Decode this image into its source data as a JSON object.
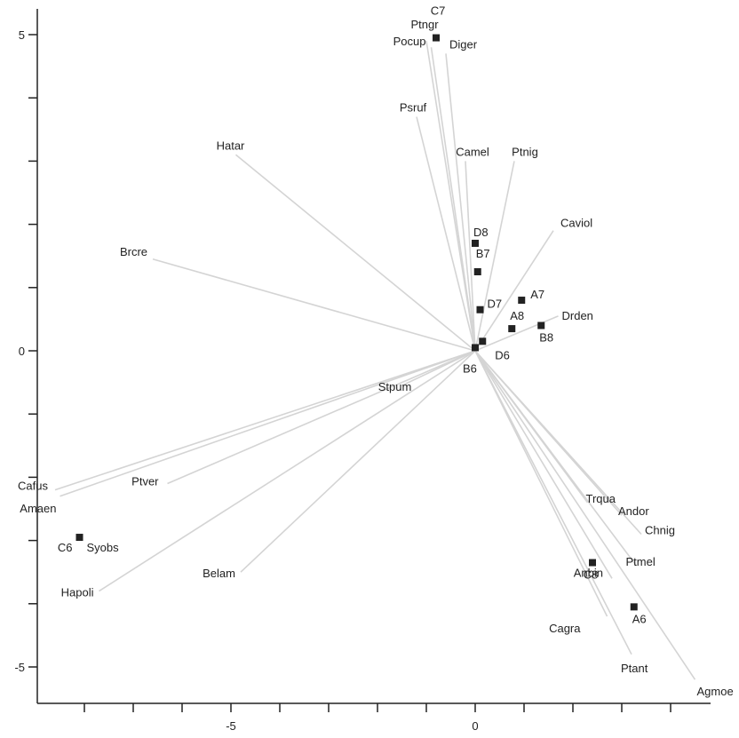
{
  "chart_data": {
    "type": "scatter",
    "title": "",
    "xlabel": "",
    "ylabel": "",
    "xlim": [
      -9,
      5.1
    ],
    "ylim": [
      -5.6,
      5.4
    ],
    "x_ticks": [
      -8,
      -7,
      -6,
      -5,
      -4,
      -3,
      -2,
      -1,
      0,
      1,
      2,
      3,
      4
    ],
    "x_tick_labels": [
      {
        "value": -5,
        "label": "-5"
      },
      {
        "value": 0,
        "label": "0"
      }
    ],
    "y_ticks": [
      5,
      4,
      3,
      2,
      1,
      0,
      -1,
      -2,
      -3,
      -4,
      -5
    ],
    "y_tick_labels": [
      {
        "value": 5,
        "label": "5"
      },
      {
        "value": 0,
        "label": "0"
      },
      {
        "value": -5,
        "label": "-5"
      }
    ],
    "grid": false,
    "colors": {
      "vectors": "#d4d4d4",
      "markers": "#222222",
      "axes": "#222222"
    },
    "vectors": [
      {
        "name": "Ptngr",
        "x": -1.0,
        "y": 4.9
      },
      {
        "name": "Pocup",
        "x": -0.9,
        "y": 4.8
      },
      {
        "name": "Diger",
        "x": -0.6,
        "y": 4.7
      },
      {
        "name": "Psruf",
        "x": -1.2,
        "y": 3.7
      },
      {
        "name": "Hatar",
        "x": -4.9,
        "y": 3.1
      },
      {
        "name": "Camel",
        "x": -0.2,
        "y": 3.0
      },
      {
        "name": "Ptnig",
        "x": 0.8,
        "y": 3.0
      },
      {
        "name": "Brcre",
        "x": -6.6,
        "y": 1.45
      },
      {
        "name": "Caviol",
        "x": 1.6,
        "y": 1.9
      },
      {
        "name": "Drden",
        "x": 1.7,
        "y": 0.55
      },
      {
        "name": "Stpum",
        "x": -1.5,
        "y": -0.55
      },
      {
        "name": "Cafus",
        "x": -8.6,
        "y": -2.2
      },
      {
        "name": "Ptver",
        "x": -6.3,
        "y": -2.1
      },
      {
        "name": "Amaen",
        "x": -8.5,
        "y": -2.3
      },
      {
        "name": "Hapoli",
        "x": -7.7,
        "y": -3.8
      },
      {
        "name": "Belam",
        "x": -4.8,
        "y": -3.5
      },
      {
        "name": "Trqua",
        "x": 2.3,
        "y": -2.4
      },
      {
        "name": "Andor",
        "x": 3.0,
        "y": -2.6
      },
      {
        "name": "Chnig",
        "x": 3.4,
        "y": -2.9
      },
      {
        "name": "Ptmel",
        "x": 3.3,
        "y": -3.4
      },
      {
        "name": "Anbin",
        "x": 2.8,
        "y": -3.6
      },
      {
        "name": "Cagra",
        "x": 2.7,
        "y": -4.2
      },
      {
        "name": "Ptant",
        "x": 3.2,
        "y": -4.8
      },
      {
        "name": "Agmoe",
        "x": 4.5,
        "y": -5.2
      }
    ],
    "sites": [
      {
        "name": "C7",
        "x": -0.8,
        "y": 4.95
      },
      {
        "name": "D8",
        "x": 0.0,
        "y": 1.7
      },
      {
        "name": "B7",
        "x": 0.05,
        "y": 1.25
      },
      {
        "name": "D7",
        "x": 0.1,
        "y": 0.65
      },
      {
        "name": "A7",
        "x": 0.95,
        "y": 0.8
      },
      {
        "name": "A8",
        "x": 0.75,
        "y": 0.35
      },
      {
        "name": "B8",
        "x": 1.35,
        "y": 0.4
      },
      {
        "name": "D6",
        "x": 0.15,
        "y": 0.15
      },
      {
        "name": "B6",
        "x": 0.0,
        "y": 0.05
      },
      {
        "name": "C6",
        "x": -8.1,
        "y": -2.95
      },
      {
        "name": "C8",
        "x": 2.4,
        "y": -3.35
      },
      {
        "name": "A6",
        "x": 3.25,
        "y": -4.05
      }
    ]
  }
}
